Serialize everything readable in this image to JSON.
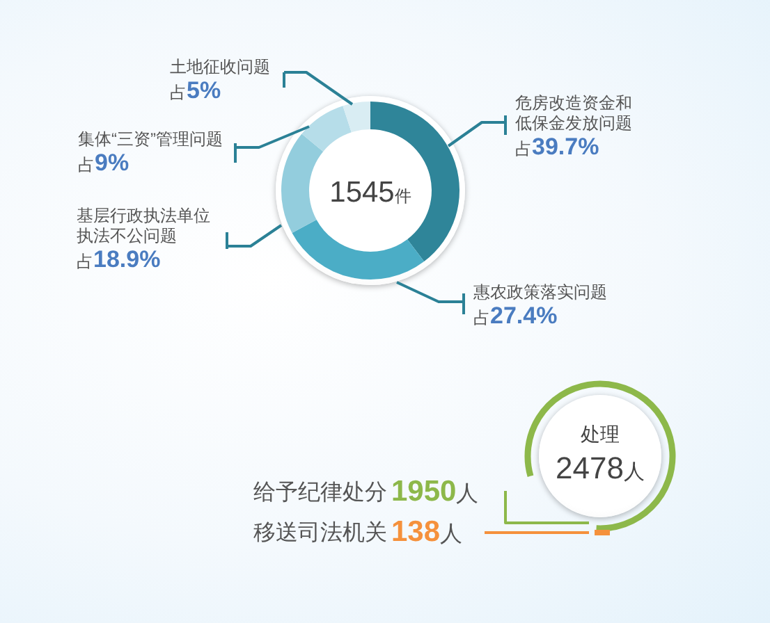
{
  "chart_data": [
    {
      "type": "donut",
      "categories": [
        "危房改造资金和低保金发放问题",
        "惠农政策落实问题",
        "基层行政执法单位执法不公问题",
        "集体“三资”管理问题",
        "土地征收问题"
      ],
      "values": [
        39.7,
        27.4,
        18.9,
        9,
        5
      ],
      "colors": [
        "#2f8599",
        "#4badc6",
        "#93cddd",
        "#b6dde9",
        "#d9edf3"
      ],
      "value_labels": [
        "占39.7%",
        "占27.4%",
        "占18.9%",
        "占9%",
        "占5%"
      ],
      "annotations": [
        "1545件"
      ]
    },
    {
      "type": "other",
      "title": "处理",
      "categories": [
        "给予纪律处分",
        "移送司法机关"
      ],
      "colors": [
        "#8db84a",
        "#f5913c"
      ],
      "value_labels": [
        "1950人",
        "138人"
      ],
      "annotations": [
        "2478人"
      ]
    }
  ]
}
